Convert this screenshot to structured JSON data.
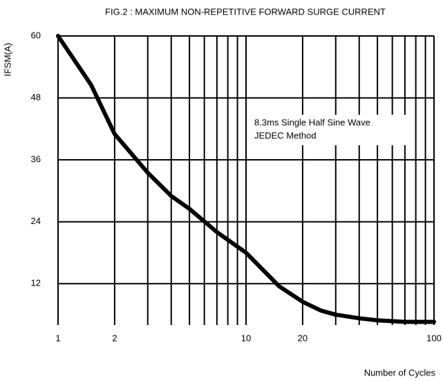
{
  "chart_data": {
    "type": "line",
    "title": "FIG.2 : MAXIMUM NON-REPETITIVE FORWARD  SURGE CURRENT",
    "ylabel": "IFSM(A)",
    "xlabel": "Number of Cycles",
    "annotations": [
      "8.3ms Single Half Sine Wave",
      "JEDEC Method"
    ],
    "xlog": true,
    "x": [
      1,
      1.5,
      2,
      3,
      4,
      5,
      7,
      10,
      15,
      20,
      25,
      30,
      40,
      50,
      70,
      100
    ],
    "series": [
      {
        "name": "IFSM",
        "color": "#000000",
        "values": [
          60,
          50.5,
          41,
          33.5,
          29,
          26.5,
          22,
          18,
          11.5,
          8.5,
          6.8,
          6,
          5.3,
          4.9,
          4.6,
          4.6
        ]
      }
    ],
    "xlim": [
      1,
      100
    ],
    "xticks": [
      1,
      2,
      10,
      20,
      100
    ],
    "xminor": [
      3,
      4,
      5,
      6,
      7,
      8,
      9,
      30,
      40,
      50,
      60,
      70,
      80,
      90
    ],
    "ylim": [
      4,
      60
    ],
    "yticks": [
      12,
      24,
      36,
      48,
      60
    ],
    "grid": true
  }
}
